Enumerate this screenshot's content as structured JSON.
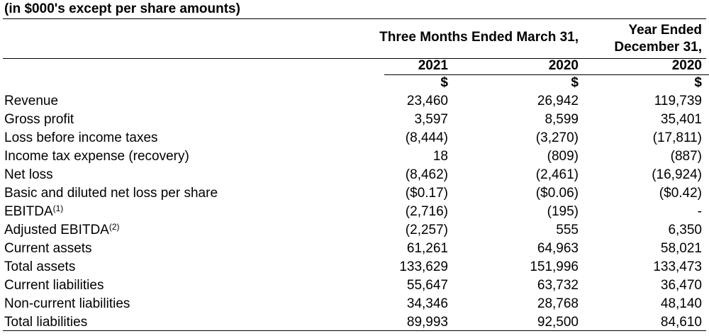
{
  "title": "(in $000's except per share amounts)",
  "header": {
    "group_label": "Three Months Ended March 31,",
    "year_ended_line1": "Year Ended",
    "year_ended_line2": "December 31,",
    "years": [
      "2021",
      "2020",
      "2020"
    ],
    "currency": [
      "$",
      "$",
      "$"
    ]
  },
  "rows": [
    {
      "label": "Revenue",
      "sup": "",
      "values": [
        "23,460",
        "26,942",
        "119,739"
      ]
    },
    {
      "label": "Gross profit",
      "sup": "",
      "values": [
        "3,597",
        "8,599",
        "35,401"
      ]
    },
    {
      "label": "Loss before income taxes",
      "sup": "",
      "values": [
        "(8,444)",
        "(3,270)",
        "(17,811)"
      ]
    },
    {
      "label": "Income tax expense (recovery)",
      "sup": "",
      "values": [
        "18",
        "(809)",
        "(887)"
      ]
    },
    {
      "label": "Net loss",
      "sup": "",
      "values": [
        "(8,462)",
        "(2,461)",
        "(16,924)"
      ]
    },
    {
      "label": "Basic and diluted net loss per share",
      "sup": "",
      "values": [
        "($0.17)",
        "($0.06)",
        "($0.42)"
      ]
    },
    {
      "label": "EBITDA",
      "sup": "(1)",
      "values": [
        "(2,716)",
        "(195)",
        "-"
      ]
    },
    {
      "label": "Adjusted EBITDA",
      "sup": "(2)",
      "values": [
        "(2,257)",
        "555",
        "6,350"
      ]
    },
    {
      "label": "Current assets",
      "sup": "",
      "values": [
        "61,261",
        "64,963",
        "58,021"
      ]
    },
    {
      "label": "Total assets",
      "sup": "",
      "values": [
        "133,629",
        "151,996",
        "133,473"
      ]
    },
    {
      "label": "Current liabilities",
      "sup": "",
      "values": [
        "55,647",
        "63,732",
        "36,470"
      ]
    },
    {
      "label": "Non-current liabilities",
      "sup": "",
      "values": [
        "34,346",
        "28,768",
        "48,140"
      ]
    },
    {
      "label": "Total liabilities",
      "sup": "",
      "values": [
        "89,993",
        "92,500",
        "84,610"
      ]
    }
  ]
}
